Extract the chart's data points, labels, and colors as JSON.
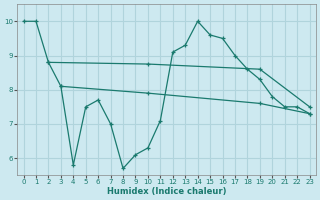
{
  "background_color": "#cde9f0",
  "grid_color": "#b0d4dc",
  "line_color": "#1a7a6e",
  "marker": "+",
  "xlabel": "Humidex (Indice chaleur)",
  "xlim": [
    -0.5,
    23.5
  ],
  "ylim": [
    5.5,
    10.5
  ],
  "yticks": [
    6,
    7,
    8,
    9,
    10
  ],
  "xticks": [
    0,
    1,
    2,
    3,
    4,
    5,
    6,
    7,
    8,
    9,
    10,
    11,
    12,
    13,
    14,
    15,
    16,
    17,
    18,
    19,
    20,
    21,
    22,
    23
  ],
  "lines": [
    {
      "x": [
        0,
        1,
        2,
        3,
        4,
        5,
        6,
        7,
        8,
        9,
        10,
        11,
        12,
        13,
        14,
        15,
        16,
        17,
        18,
        19,
        20,
        21,
        22,
        23
      ],
      "y": [
        10,
        10,
        8.8,
        8.1,
        5.8,
        7.5,
        7.7,
        7.0,
        5.7,
        6.1,
        6.3,
        7.1,
        9.1,
        9.3,
        10.0,
        9.6,
        9.5,
        9.0,
        8.6,
        8.3,
        7.8,
        7.5,
        7.5,
        7.3
      ]
    },
    {
      "x": [
        2,
        10,
        19,
        23
      ],
      "y": [
        8.8,
        8.75,
        8.6,
        7.5
      ]
    },
    {
      "x": [
        3,
        10,
        19,
        23
      ],
      "y": [
        8.1,
        7.9,
        7.6,
        7.3
      ]
    }
  ]
}
